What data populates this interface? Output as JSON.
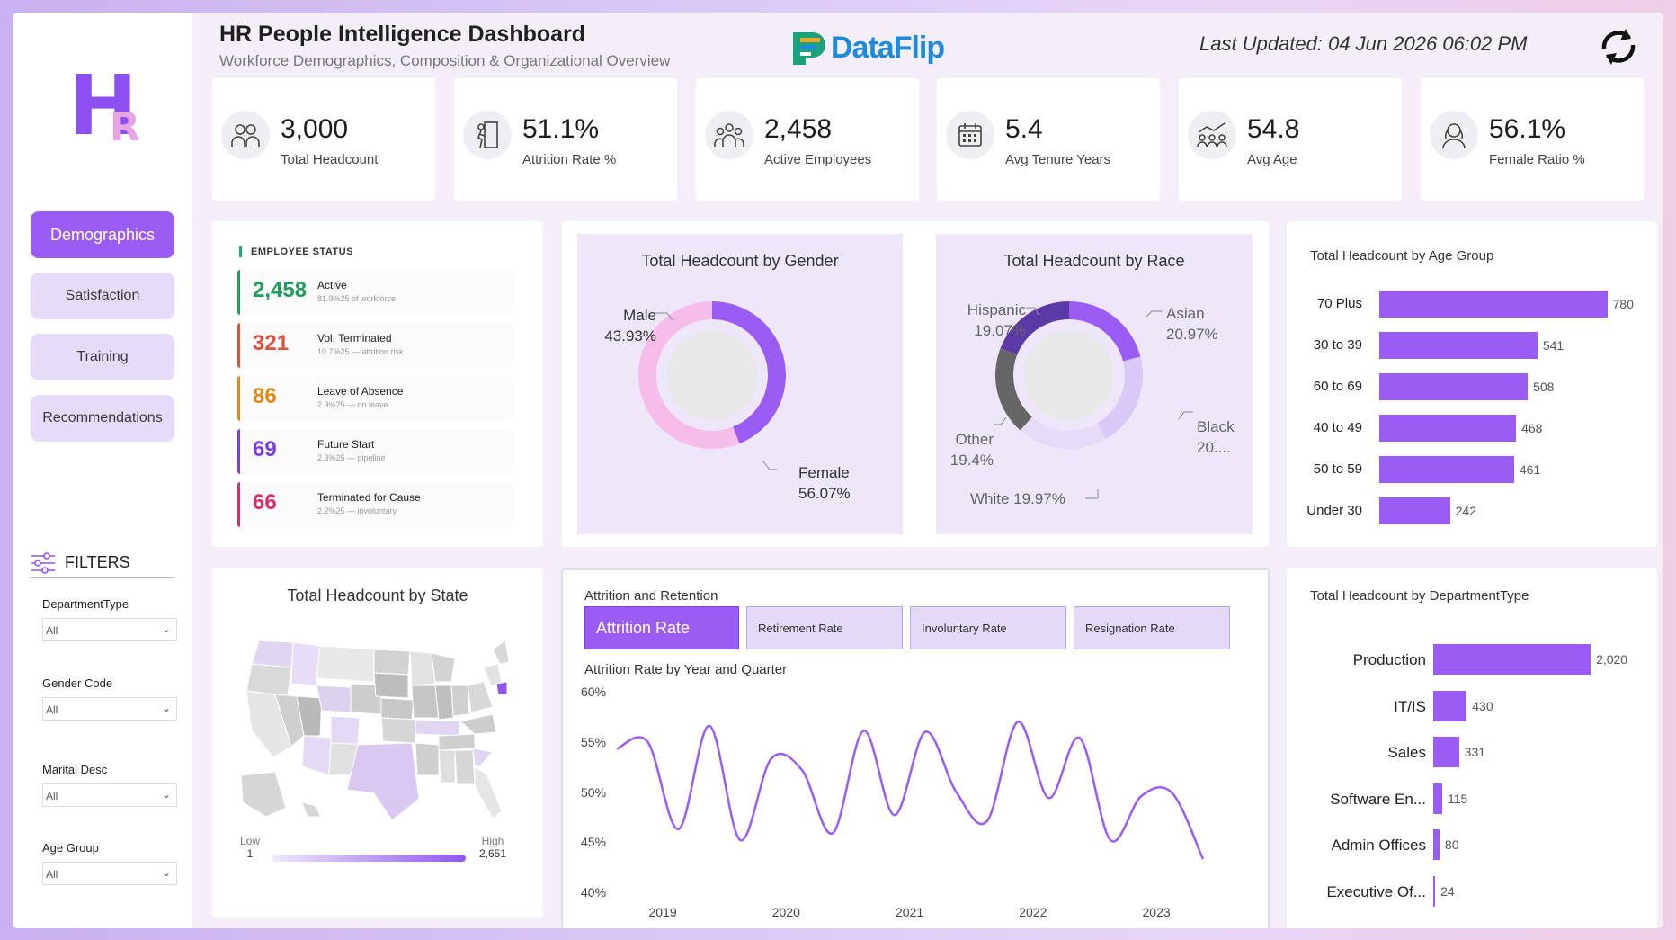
{
  "header": {
    "title": "HR People Intelligence Dashboard",
    "subtitle": "Workforce Demographics, Composition & Organizational Overview",
    "brand": "DataFlip",
    "last_updated": "Last Updated: 04 Jun 2026 06:02 PM"
  },
  "sidebar": {
    "logo_h": "H",
    "logo_r": "R",
    "nav": [
      "Demographics",
      "Satisfaction",
      "Training",
      "Recommendations"
    ],
    "filters_title": "FILTERS",
    "filters": [
      {
        "label": "DepartmentType",
        "value": "All"
      },
      {
        "label": "Gender Code",
        "value": "All"
      },
      {
        "label": "Marital Desc",
        "value": "All"
      },
      {
        "label": "Age Group",
        "value": "All"
      }
    ]
  },
  "kpis": [
    {
      "value": "3,000",
      "label": "Total Headcount",
      "icon": "people-group-icon"
    },
    {
      "value": "51.1%",
      "label": "Attrition Rate %",
      "icon": "exit-door-icon"
    },
    {
      "value": "2,458",
      "label": "Active Employees",
      "icon": "team-icon"
    },
    {
      "value": "5.4",
      "label": "Avg Tenure Years",
      "icon": "calendar-icon"
    },
    {
      "value": "54.8",
      "label": "Avg Age",
      "icon": "growth-people-icon"
    },
    {
      "value": "56.1%",
      "label": "Female Ratio %",
      "icon": "female-user-icon"
    }
  ],
  "employee_status": {
    "title": "EMPLOYEE STATUS",
    "rows": [
      {
        "count": "2,458",
        "name": "Active",
        "sub": "81.9%25 of workforce",
        "color": "#1e9e5a"
      },
      {
        "count": "321",
        "name": "Vol. Terminated",
        "sub": "10.7%25 — attrition risk",
        "color": "#e0503f"
      },
      {
        "count": "86",
        "name": "Leave of Absence",
        "sub": "2.9%25 — on leave",
        "color": "#e08a1a"
      },
      {
        "count": "69",
        "name": "Future Start",
        "sub": "2.3%25 — pipeline",
        "color": "#7a3fe0"
      },
      {
        "count": "66",
        "name": "Terminated for Cause",
        "sub": "2.2%25 — involuntary",
        "color": "#d42f6e"
      }
    ]
  },
  "gender_chart": {
    "title": "Total Headcount by Gender",
    "label_male": "Male",
    "label_male_pct": "43.93%",
    "label_female": "Female",
    "label_female_pct": "56.07%"
  },
  "race_chart": {
    "title": "Total Headcount by Race",
    "labels": {
      "hispanic": "Hispanic",
      "hispanic_pct": "19.07%",
      "asian": "Asian",
      "asian_pct": "20.97%",
      "black": "Black",
      "black_pct": "20....",
      "other": "Other",
      "other_pct": "19.4%",
      "white": "White 19.97%"
    }
  },
  "age_chart": {
    "title": "Total Headcount by Age Group"
  },
  "state_map": {
    "title": "Total Headcount by State",
    "legend_low": "Low",
    "legend_low_val": "1",
    "legend_high": "High",
    "legend_high_val": "2,651",
    "colors": {
      "low": "#e6dcf5",
      "high": "#8f55ee",
      "none": "#d4d4d4"
    }
  },
  "attrition": {
    "title": "Attrition and Retention",
    "tabs": [
      "Attrition Rate",
      "Retirement Rate",
      "Involuntary Rate",
      "Resignation Rate"
    ],
    "subtitle": "Attrition Rate by Year and Quarter"
  },
  "dept_chart": {
    "title": "Total Headcount by DepartmentType"
  },
  "chart_data": [
    {
      "type": "pie",
      "title": "Total Headcount by Gender",
      "categories": [
        "Male",
        "Female"
      ],
      "values": [
        43.93,
        56.07
      ],
      "colors": [
        "#9a5cf3",
        "#f6bdea"
      ]
    },
    {
      "type": "pie",
      "title": "Total Headcount by Race",
      "categories": [
        "Asian",
        "Black",
        "White",
        "Other",
        "Hispanic"
      ],
      "values": [
        20.97,
        20.6,
        19.97,
        19.4,
        19.07
      ],
      "colors": [
        "#9a5cf3",
        "#d9c9f6",
        "#e6dcf7",
        "#666666",
        "#5b3aa6"
      ]
    },
    {
      "type": "bar",
      "orientation": "horizontal",
      "title": "Total Headcount by Age Group",
      "categories": [
        "70 Plus",
        "30 to 39",
        "60 to 69",
        "40 to 49",
        "50 to 59",
        "Under 30"
      ],
      "values": [
        780,
        541,
        508,
        468,
        461,
        242
      ],
      "xlim": [
        0,
        800
      ]
    },
    {
      "type": "bar",
      "orientation": "horizontal",
      "title": "Total Headcount by DepartmentType",
      "categories": [
        "Production",
        "IT/IS",
        "Sales",
        "Software En...",
        "Admin Offices",
        "Executive Of..."
      ],
      "values": [
        2020,
        430,
        331,
        115,
        80,
        24
      ],
      "value_labels": [
        "2,020",
        "430",
        "331",
        "115",
        "80",
        "24"
      ],
      "xlim": [
        0,
        2100
      ]
    },
    {
      "type": "line",
      "title": "Attrition Rate by Year and Quarter",
      "x_ticks": [
        "2019",
        "2020",
        "2021",
        "2022",
        "2023"
      ],
      "y_ticks": [
        "60%",
        "55%",
        "50%",
        "45%",
        "40%"
      ],
      "ylim": [
        40,
        60
      ],
      "x": [
        2018.75,
        2019.0,
        2019.25,
        2019.5,
        2019.75,
        2020.0,
        2020.25,
        2020.5,
        2020.75,
        2021.0,
        2021.25,
        2021.5,
        2021.75,
        2022.0,
        2022.25,
        2022.5,
        2022.75,
        2023.0,
        2023.25,
        2023.5
      ],
      "values": [
        54.3,
        55.0,
        46.3,
        56.6,
        45.2,
        53.3,
        52.2,
        45.9,
        56.1,
        47.7,
        56.0,
        50.0,
        47.1,
        57.0,
        49.4,
        55.4,
        45.2,
        49.6,
        49.9,
        43.3
      ],
      "color": "#9a5cf3"
    }
  ]
}
